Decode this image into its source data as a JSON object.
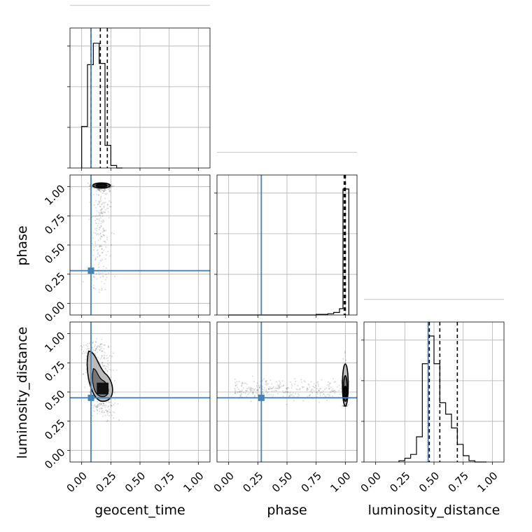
{
  "chart_data": {
    "type": "scatter",
    "kind": "corner plot",
    "parameters": [
      "geocent_time",
      "phase",
      "luminosity_distance"
    ],
    "truths": {
      "geocent_time": 0.08,
      "phase": 0.28,
      "luminosity_distance": 0.45
    },
    "truth_color": "#4682b4",
    "axis_range": [
      -0.1,
      1.1
    ],
    "ticks": [
      0.0,
      0.25,
      0.5,
      0.75,
      1.0
    ],
    "tick_labels": [
      "0.00",
      "0.25",
      "0.50",
      "0.75",
      "1.00"
    ],
    "grid": true,
    "histograms": {
      "geocent_time": {
        "edges": [
          0.0,
          0.05,
          0.1,
          0.15,
          0.2,
          0.25,
          0.3,
          0.35
        ],
        "counts": [
          0.33,
          0.82,
          0.99,
          0.83,
          0.18,
          0.02,
          0.0
        ],
        "quantiles": [
          0.08,
          0.16,
          0.22
        ]
      },
      "phase": {
        "edges": [
          0.0,
          0.05,
          0.1,
          0.15,
          0.2,
          0.25,
          0.3,
          0.35,
          0.4,
          0.45,
          0.5,
          0.55,
          0.6,
          0.65,
          0.7,
          0.75,
          0.8,
          0.85,
          0.9,
          0.95,
          0.98,
          1.03
        ],
        "counts": [
          0.0,
          0.0,
          0.0,
          0.0,
          0.0,
          0.0,
          0.0,
          0.0,
          0.0,
          0.0,
          0.0,
          0.0,
          0.0,
          0.0,
          0.0,
          0.005,
          0.005,
          0.01,
          0.02,
          0.05,
          1.0
        ],
        "quantiles": [
          0.99,
          1.0,
          1.0
        ]
      },
      "luminosity_distance": {
        "edges": [
          0.2,
          0.25,
          0.3,
          0.35,
          0.4,
          0.45,
          0.5,
          0.55,
          0.6,
          0.65,
          0.7,
          0.75,
          0.8,
          0.85,
          0.9,
          0.95
        ],
        "counts": [
          0.01,
          0.03,
          0.06,
          0.2,
          0.78,
          1.0,
          0.78,
          0.47,
          0.38,
          0.27,
          0.14,
          0.05,
          0.01,
          0.0,
          0.0
        ],
        "quantiles": [
          0.46,
          0.55,
          0.7
        ]
      }
    },
    "scatter": {
      "phase_vs_geocent_time": {
        "x_center": 0.17,
        "x_spread": 0.045,
        "dense_y": 1.0,
        "tail_y_range": [
          0.05,
          0.98
        ]
      },
      "luminosity_distance_vs_geocent_time": {
        "x_center": 0.16,
        "x_spread": 0.06,
        "y_center": 0.52,
        "y_range": [
          0.3,
          0.92
        ]
      },
      "luminosity_distance_vs_phase": {
        "x_range": [
          0.05,
          1.02
        ],
        "dense_x": 1.0,
        "y_center": 0.52,
        "y_range": [
          0.38,
          0.95
        ]
      }
    }
  }
}
